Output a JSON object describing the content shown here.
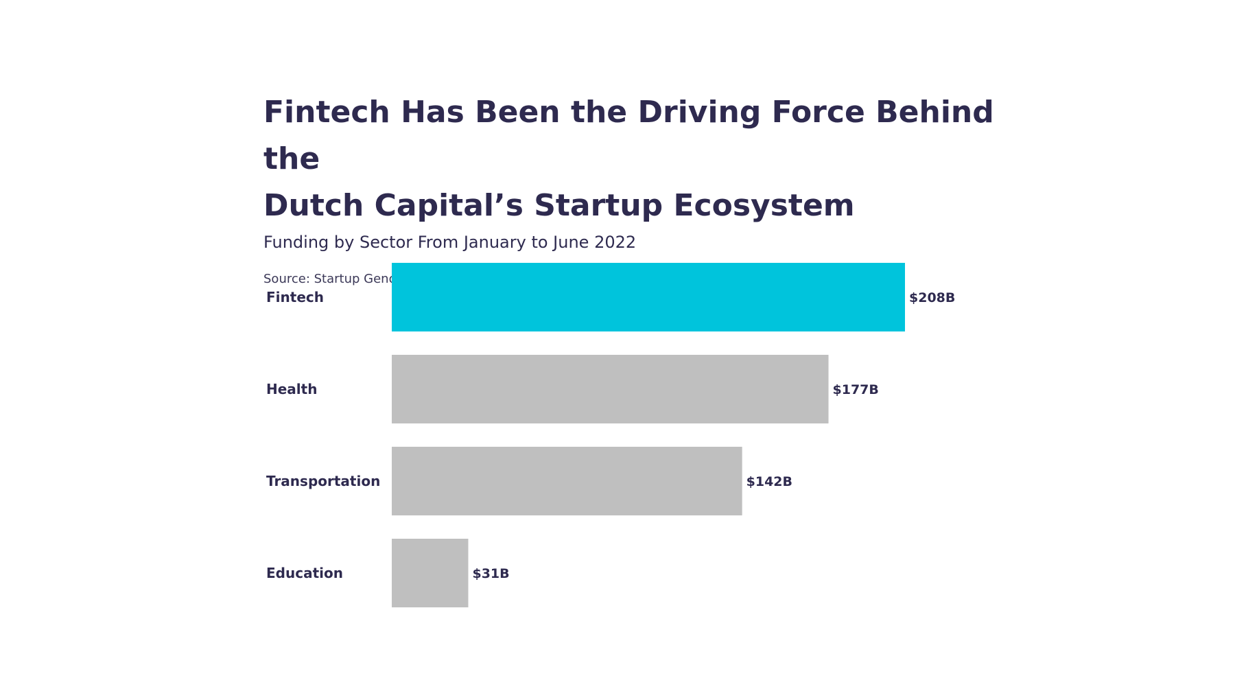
{
  "chart_data": {
    "type": "bar",
    "orientation": "horizontal",
    "title_line1": "Fintech Has Been the Driving Force Behind the",
    "title_line2": "Dutch Capital’s Startup Ecosystem",
    "subtitle": "Funding by Sector From January to June 2022",
    "source": "Source: Startup Genome, 2023",
    "categories": [
      "Fintech",
      "Health",
      "Transportation",
      "Education"
    ],
    "values": [
      208,
      177,
      142,
      31
    ],
    "value_labels": [
      "$208B",
      "$177B",
      "$142B",
      "$31B"
    ],
    "unit": "$B",
    "xlim": [
      0,
      208
    ],
    "grid": false,
    "legend": "none",
    "colors": {
      "highlight": "#00c4dc",
      "default": "#bfbfbf",
      "text": "#2e2a4f"
    },
    "highlight_index": 0
  }
}
